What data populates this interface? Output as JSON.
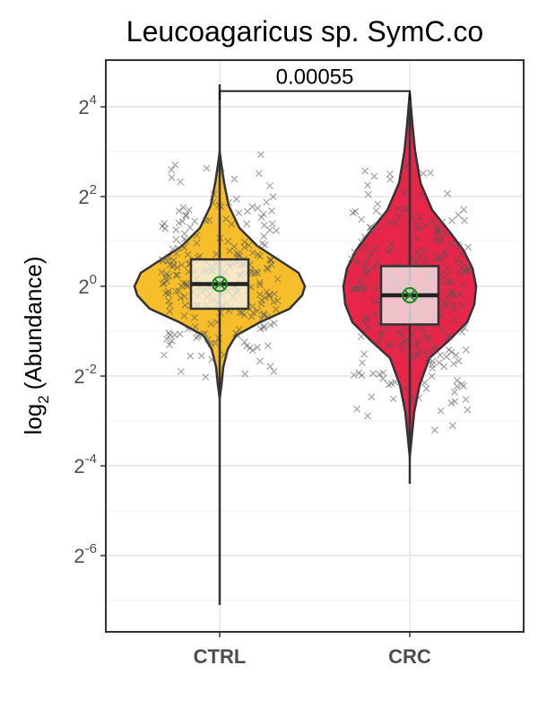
{
  "chart_data": {
    "type": "violin",
    "title": "Leucoagaricus sp. SymC.co",
    "ylabel_prefix": "log",
    "ylabel_sub": "2",
    "ylabel_suffix": "(Abundance)",
    "y_scale": "log2",
    "ylim_exponent": [
      -7.2,
      5.0
    ],
    "y_ticks": [
      {
        "base": "2",
        "exp": "4",
        "value": 4
      },
      {
        "base": "2",
        "exp": "2",
        "value": 2
      },
      {
        "base": "2",
        "exp": "0",
        "value": 0
      },
      {
        "base": "2",
        "exp": "-2",
        "value": -2
      },
      {
        "base": "2",
        "exp": "-4",
        "value": -4
      },
      {
        "base": "2",
        "exp": "-6",
        "value": -6
      }
    ],
    "grid": true,
    "categories": [
      "CTRL",
      "CRC"
    ],
    "colors": {
      "CTRL": "#F5BE2A",
      "CRC": "#E8264A",
      "mean_marker": "#1a8a1a",
      "points": "#555555"
    },
    "groups": [
      {
        "name": "CTRL",
        "box": {
          "q1": -0.5,
          "median": 0.05,
          "q3": 0.6,
          "whisker_low": -7.1,
          "whisker_high": 4.5
        },
        "mean": 0.05,
        "violin_range": [
          -2.5,
          3.0
        ],
        "tail_range": [
          -7.1,
          4.5
        ]
      },
      {
        "name": "CRC",
        "box": {
          "q1": -0.85,
          "median": -0.2,
          "q3": 0.45,
          "whisker_low": -4.4,
          "whisker_high": 4.3
        },
        "mean": -0.2,
        "violin_range": [
          -3.8,
          4.3
        ],
        "tail_range": [
          -4.4,
          4.3
        ]
      }
    ],
    "annotations": [
      {
        "text": "0.00055",
        "between": [
          "CTRL",
          "CRC"
        ],
        "y_exponent": 4.35
      }
    ]
  }
}
